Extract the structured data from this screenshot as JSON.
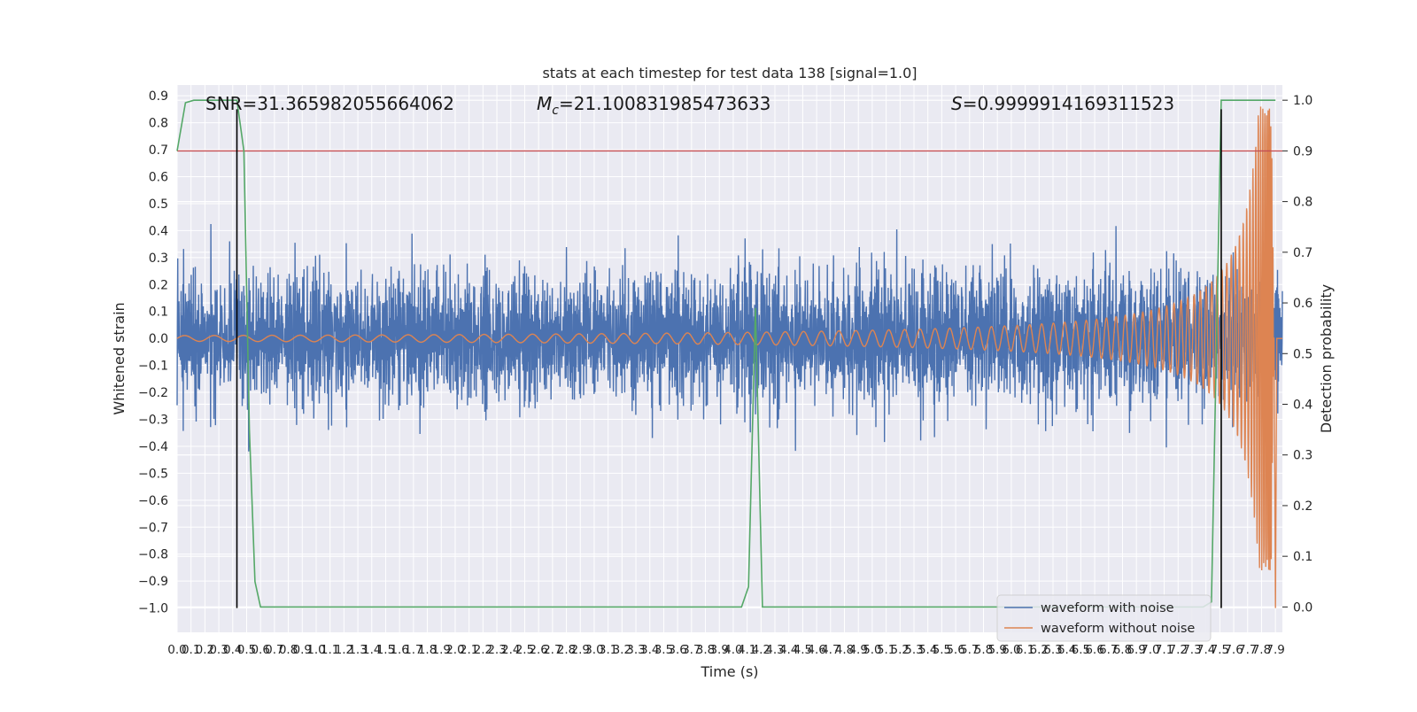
{
  "chart_data": {
    "type": "line",
    "title": "stats at each timestep for test data 138 [signal=1.0]",
    "xlabel": "Time (s)",
    "ylabel": "Whitened strain",
    "ylabel_right": "Detection probability",
    "xlim": [
      0.0,
      7.95
    ],
    "ylim": [
      -1.09,
      0.94
    ],
    "ylim_right": [
      -0.05,
      1.03
    ],
    "x_ticks": [
      "0.0",
      "0.1",
      "0.2",
      "0.3",
      "0.4",
      "0.5",
      "0.6",
      "0.7",
      "0.8",
      "0.9",
      "1.0",
      "1.1",
      "1.2",
      "1.3",
      "1.4",
      "1.5",
      "1.6",
      "1.7",
      "1.8",
      "1.9",
      "2.0",
      "2.1",
      "2.2",
      "2.3",
      "2.4",
      "2.5",
      "2.6",
      "2.7",
      "2.8",
      "2.9",
      "3.0",
      "3.1",
      "3.2",
      "3.3",
      "3.4",
      "3.5",
      "3.6",
      "3.7",
      "3.8",
      "3.9",
      "4.0",
      "4.1",
      "4.2",
      "4.3",
      "4.4",
      "4.5",
      "4.6",
      "4.7",
      "4.8",
      "4.9",
      "5.0",
      "5.1",
      "5.2",
      "5.3",
      "5.4",
      "5.5",
      "5.6",
      "5.7",
      "5.8",
      "5.9",
      "6.0",
      "6.1",
      "6.2",
      "6.3",
      "6.4",
      "6.5",
      "6.6",
      "6.7",
      "6.8",
      "6.9",
      "7.0",
      "7.1",
      "7.2",
      "7.3",
      "7.4",
      "7.5",
      "7.6",
      "7.7",
      "7.8",
      "7.9"
    ],
    "y_ticks": [
      "−1.0",
      "−0.9",
      "−0.8",
      "−0.7",
      "−0.6",
      "−0.5",
      "−0.4",
      "−0.3",
      "−0.2",
      "−0.1",
      "0.0",
      "0.1",
      "0.2",
      "0.3",
      "0.4",
      "0.5",
      "0.6",
      "0.7",
      "0.8",
      "0.9"
    ],
    "y_ticks_right": [
      "0.0",
      "0.1",
      "0.2",
      "0.3",
      "0.4",
      "0.5",
      "0.6",
      "0.7",
      "0.8",
      "0.9",
      "1.0"
    ],
    "annotations": {
      "snr": "SNR=31.365982055664062",
      "mc_symbol": "M",
      "mc_sub": "c",
      "mc_value": "=21.100831985473633",
      "s_symbol": "S",
      "s_value": "=0.9999914169311523"
    },
    "series": [
      {
        "name": "waveform with noise",
        "color": "#4c72b0",
        "axis": "left",
        "description": "noisy whitened strain, amplitude mostly within ±0.3 with peaks to about ±0.5"
      },
      {
        "name": "waveform without noise",
        "color": "#dd8452",
        "axis": "left",
        "description": "chirp signal, amplitude growing from ~0.01 to ~0.85 near 7.85 s, merger around 7.85 s"
      },
      {
        "name": "",
        "color": "#55a868",
        "axis": "right",
        "x": [
          0.0,
          0.06,
          0.12,
          0.2,
          0.3,
          0.43,
          0.48,
          0.52,
          0.56,
          0.6,
          0.66,
          4.0,
          4.06,
          4.11,
          4.16,
          4.21,
          4.26,
          7.38,
          7.44,
          7.51,
          7.58,
          7.9
        ],
        "y": [
          0.9,
          0.995,
          1.0,
          1.0,
          1.0,
          1.0,
          0.9,
          0.35,
          0.05,
          0.0,
          0.0,
          0.0,
          0.0,
          0.04,
          0.59,
          0.0,
          0.0,
          0.0,
          0.01,
          1.0,
          1.0,
          1.0
        ]
      }
    ],
    "threshold": {
      "axis": "right",
      "value": 0.9,
      "color": "#c44e52"
    },
    "vlines": {
      "color": "#000000",
      "x": [
        0.43,
        7.51
      ],
      "ymin": -1.0,
      "ymax": 0.85
    },
    "grid": true,
    "legend": {
      "location": "lower-right",
      "entries": [
        "waveform with noise",
        "waveform without noise"
      ]
    }
  }
}
